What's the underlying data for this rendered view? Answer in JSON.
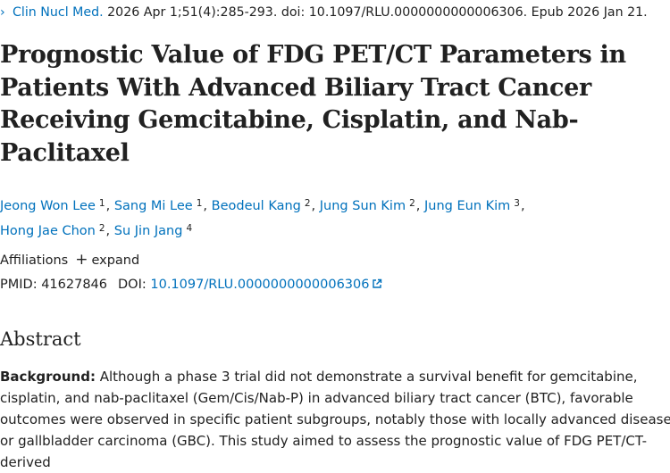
{
  "citation": {
    "chevron": "›",
    "journal": "Clin Nucl Med.",
    "details": " 2026 Apr 1;51(4):285-293. doi: 10.1097/RLU.0000000000006306. Epub 2026 Jan 21."
  },
  "title": "Prognostic Value of FDG PET/CT Parameters in Patients With Advanced Biliary Tract Cancer Receiving Gemcitabine, Cisplatin, and Nab-Paclitaxel",
  "authors": [
    {
      "name": "Jeong Won Lee",
      "aff": "1"
    },
    {
      "name": "Sang Mi Lee",
      "aff": "1"
    },
    {
      "name": "Beodeul Kang",
      "aff": "2"
    },
    {
      "name": "Jung Sun Kim",
      "aff": "2"
    },
    {
      "name": "Jung Eun Kim",
      "aff": "3"
    },
    {
      "name": "Hong Jae Chon",
      "aff": "2"
    },
    {
      "name": "Su Jin Jang",
      "aff": "4"
    }
  ],
  "affiliations": {
    "label": "Affiliations",
    "expand_icon": "plus-icon",
    "expand_label": "expand"
  },
  "identifiers": {
    "pmid_label": "PMID:",
    "pmid": "41627846",
    "doi_label": "DOI:",
    "doi": "10.1097/RLU.0000000000006306"
  },
  "abstract": {
    "heading": "Abstract",
    "background_label": "Background:",
    "background_text": " Although a phase 3 trial did not demonstrate a survival benefit for gemcitabine, cisplatin, and nab-paclitaxel (Gem/Cis/Nab-P) in advanced biliary tract cancer (BTC), favorable outcomes were observed in specific patient subgroups, notably those with locally advanced disease or gallbladder carcinoma (GBC). This study aimed to assess the prognostic value of FDG PET/CT-derived"
  },
  "colors": {
    "link": "#0071bc",
    "text": "#212121",
    "background": "#ffffff"
  }
}
